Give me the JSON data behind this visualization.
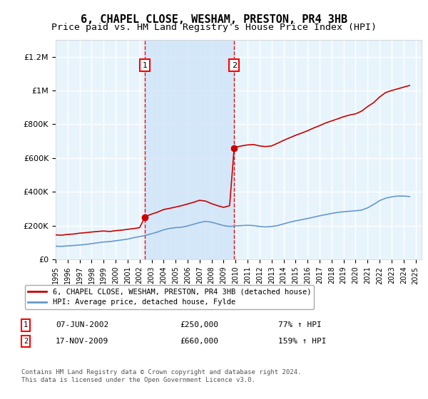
{
  "title": "6, CHAPEL CLOSE, WESHAM, PRESTON, PR4 3HB",
  "subtitle": "Price paid vs. HM Land Registry's House Price Index (HPI)",
  "title_fontsize": 11,
  "subtitle_fontsize": 9.5,
  "xlabel": "",
  "ylabel": "",
  "ylim": [
    0,
    1300000
  ],
  "xlim_start": 1995.0,
  "xlim_end": 2025.5,
  "yticks": [
    0,
    200000,
    400000,
    600000,
    800000,
    1000000,
    1200000
  ],
  "ytick_labels": [
    "£0",
    "£200K",
    "£400K",
    "£600K",
    "£800K",
    "£1M",
    "£1.2M"
  ],
  "xticks": [
    1995,
    1996,
    1997,
    1998,
    1999,
    2000,
    2001,
    2002,
    2003,
    2004,
    2005,
    2006,
    2007,
    2008,
    2009,
    2010,
    2011,
    2012,
    2013,
    2014,
    2015,
    2016,
    2017,
    2018,
    2019,
    2020,
    2021,
    2022,
    2023,
    2024,
    2025
  ],
  "transaction1_x": 2002.44,
  "transaction1_y": 250000,
  "transaction1_label": "1",
  "transaction2_x": 2009.88,
  "transaction2_y": 660000,
  "transaction2_label": "2",
  "shade_start": 2002.44,
  "shade_end": 2009.88,
  "shade_color": "#d0e4f7",
  "shade_alpha": 0.5,
  "bg_color": "#e8f4fc",
  "grid_color": "#ffffff",
  "legend_line1": "6, CHAPEL CLOSE, WESHAM, PRESTON, PR4 3HB (detached house)",
  "legend_line2": "HPI: Average price, detached house, Fylde",
  "red_color": "#cc0000",
  "blue_color": "#6699cc",
  "table_row1": [
    "1",
    "07-JUN-2002",
    "£250,000",
    "77% ↑ HPI"
  ],
  "table_row2": [
    "2",
    "17-NOV-2009",
    "£660,000",
    "159% ↑ HPI"
  ],
  "footer": "Contains HM Land Registry data © Crown copyright and database right 2024.\nThis data is licensed under the Open Government Licence v3.0.",
  "red_line_data_x": [
    1995.0,
    1995.5,
    1996.0,
    1996.5,
    1997.0,
    1997.5,
    1998.0,
    1998.5,
    1999.0,
    1999.5,
    2000.0,
    2000.5,
    2001.0,
    2001.5,
    2002.0,
    2002.44,
    2002.5,
    2003.0,
    2003.5,
    2004.0,
    2004.5,
    2005.0,
    2005.5,
    2006.0,
    2006.5,
    2007.0,
    2007.5,
    2008.0,
    2008.5,
    2009.0,
    2009.5,
    2009.88,
    2010.0,
    2010.5,
    2011.0,
    2011.5,
    2012.0,
    2012.5,
    2013.0,
    2013.5,
    2014.0,
    2014.5,
    2015.0,
    2015.5,
    2016.0,
    2016.5,
    2017.0,
    2017.5,
    2018.0,
    2018.5,
    2019.0,
    2019.5,
    2020.0,
    2020.5,
    2021.0,
    2021.5,
    2022.0,
    2022.5,
    2023.0,
    2023.5,
    2024.0,
    2024.5
  ],
  "red_line_data_y": [
    145000,
    143000,
    148000,
    150000,
    155000,
    158000,
    162000,
    165000,
    168000,
    165000,
    170000,
    173000,
    178000,
    182000,
    188000,
    250000,
    255000,
    268000,
    280000,
    295000,
    302000,
    310000,
    318000,
    328000,
    338000,
    350000,
    345000,
    330000,
    318000,
    308000,
    318000,
    660000,
    665000,
    672000,
    678000,
    680000,
    672000,
    668000,
    672000,
    688000,
    705000,
    720000,
    735000,
    748000,
    762000,
    778000,
    792000,
    808000,
    820000,
    832000,
    845000,
    855000,
    862000,
    878000,
    905000,
    928000,
    962000,
    988000,
    1000000,
    1010000,
    1020000,
    1030000
  ],
  "blue_line_data_x": [
    1995.0,
    1995.5,
    1996.0,
    1996.5,
    1997.0,
    1997.5,
    1998.0,
    1998.5,
    1999.0,
    1999.5,
    2000.0,
    2000.5,
    2001.0,
    2001.5,
    2002.0,
    2002.5,
    2003.0,
    2003.5,
    2004.0,
    2004.5,
    2005.0,
    2005.5,
    2006.0,
    2006.5,
    2007.0,
    2007.5,
    2008.0,
    2008.5,
    2009.0,
    2009.5,
    2010.0,
    2010.5,
    2011.0,
    2011.5,
    2012.0,
    2012.5,
    2013.0,
    2013.5,
    2014.0,
    2014.5,
    2015.0,
    2015.5,
    2016.0,
    2016.5,
    2017.0,
    2017.5,
    2018.0,
    2018.5,
    2019.0,
    2019.5,
    2020.0,
    2020.5,
    2021.0,
    2021.5,
    2022.0,
    2022.5,
    2023.0,
    2023.5,
    2024.0,
    2024.5
  ],
  "blue_line_data_y": [
    78000,
    77000,
    80000,
    82000,
    85000,
    88000,
    93000,
    98000,
    103000,
    105000,
    110000,
    115000,
    120000,
    128000,
    135000,
    142000,
    152000,
    162000,
    175000,
    183000,
    188000,
    190000,
    198000,
    208000,
    218000,
    225000,
    220000,
    210000,
    200000,
    195000,
    198000,
    200000,
    202000,
    200000,
    195000,
    192000,
    195000,
    200000,
    210000,
    220000,
    228000,
    235000,
    242000,
    250000,
    258000,
    265000,
    272000,
    278000,
    282000,
    285000,
    288000,
    292000,
    305000,
    325000,
    348000,
    362000,
    370000,
    375000,
    375000,
    372000
  ]
}
